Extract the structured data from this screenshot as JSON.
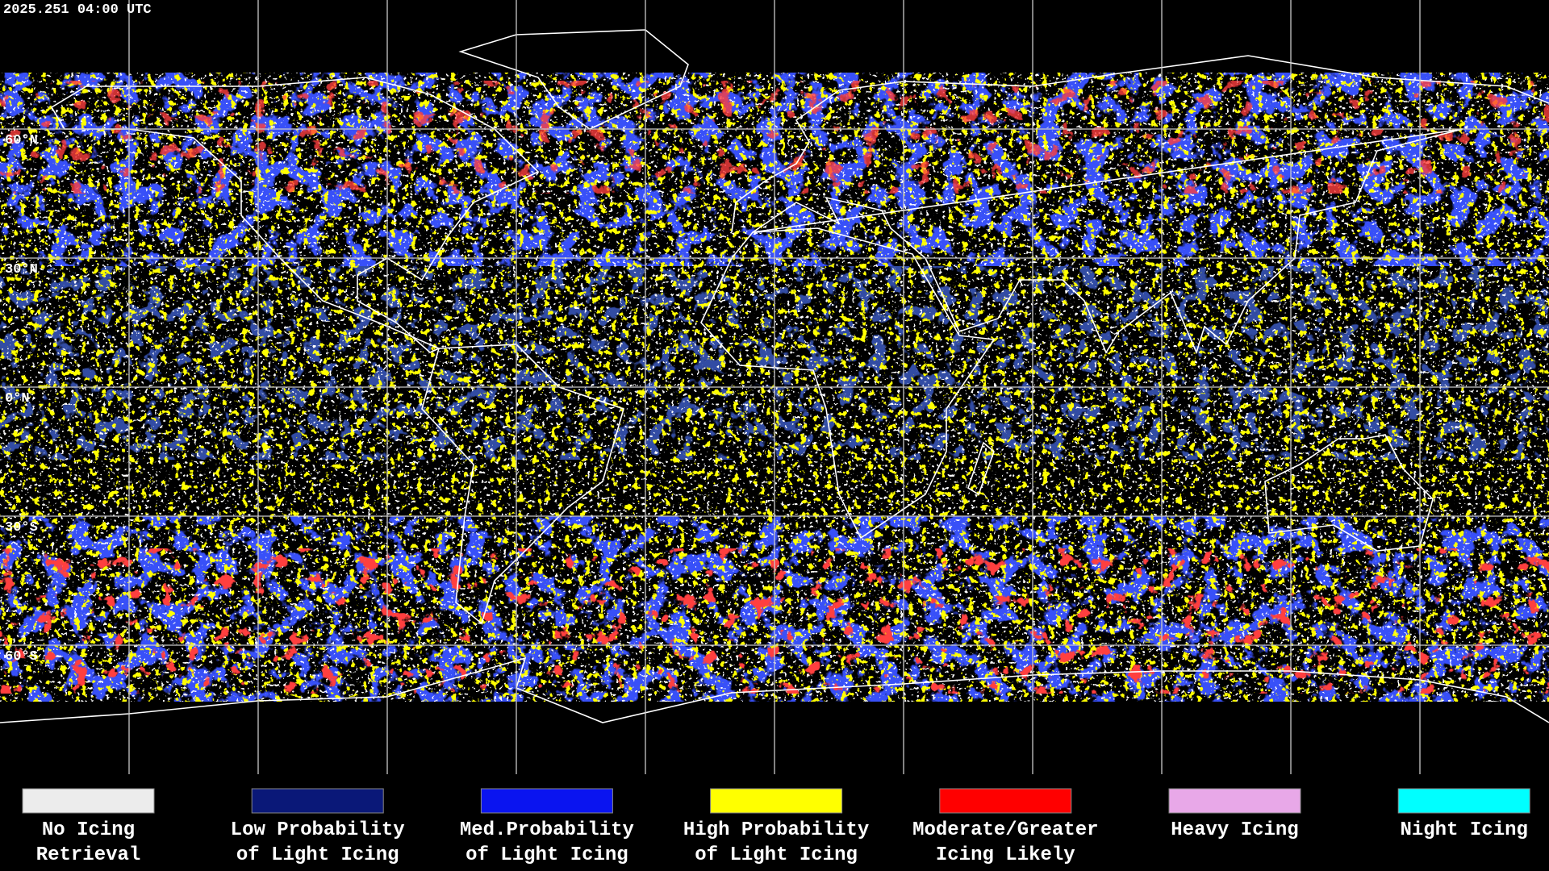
{
  "timestamp": "2025.251 04:00 UTC",
  "latitude_labels": [
    {
      "label": "60°N",
      "lat": 60
    },
    {
      "label": "30°N",
      "lat": 30
    },
    {
      "label": "0°N",
      "lat": 0
    },
    {
      "label": "30°S",
      "lat": -30
    },
    {
      "label": "60°S",
      "lat": -60
    }
  ],
  "legend": [
    {
      "lines": [
        "No Icing",
        "Retrieval"
      ],
      "color": "#ececec"
    },
    {
      "lines": [
        "Low Probability",
        "of Light Icing"
      ],
      "color": "#0a1878"
    },
    {
      "lines": [
        "Med.Probability",
        "of Light Icing"
      ],
      "color": "#0a14f0"
    },
    {
      "lines": [
        "High Probability",
        "of Light Icing"
      ],
      "color": "#ffff00"
    },
    {
      "lines": [
        "Moderate/Greater",
        "Icing Likely"
      ],
      "color": "#ff0000"
    },
    {
      "lines": [
        "Heavy Icing"
      ],
      "color": "#e8a8e8"
    },
    {
      "lines": [
        "Night Icing"
      ],
      "color": "#00ffff"
    }
  ]
}
